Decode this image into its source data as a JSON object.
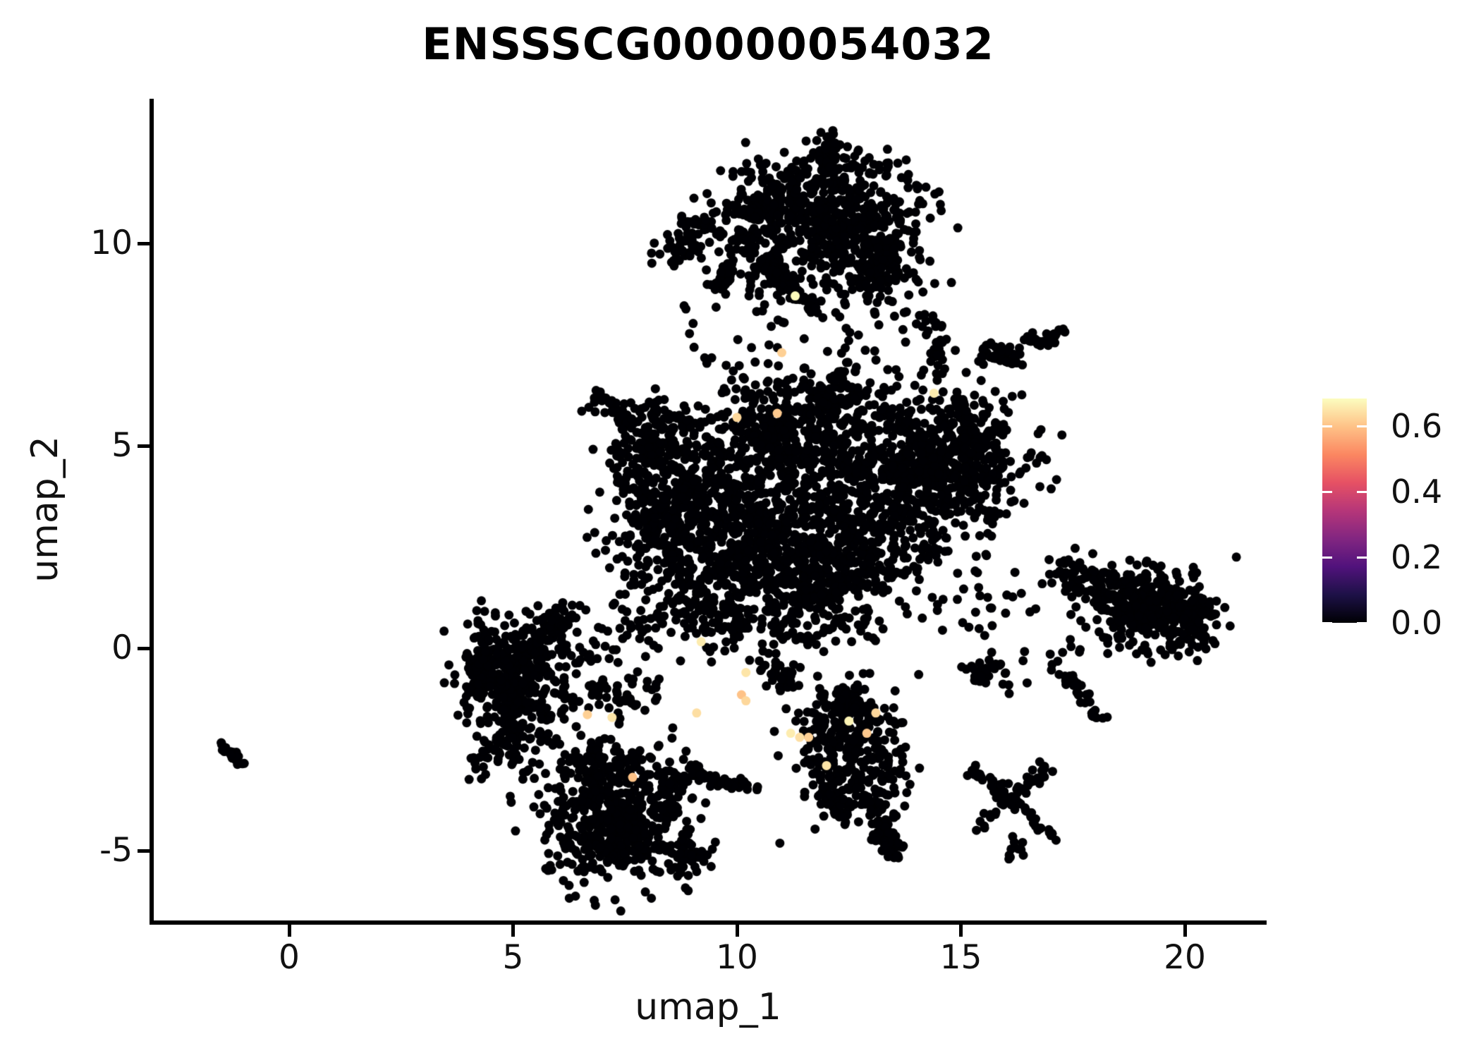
{
  "title": "ENSSSCG00000054032",
  "chart_data": {
    "type": "scatter",
    "title": "ENSSSCG00000054032",
    "xlabel": "umap_1",
    "ylabel": "umap_2",
    "xlim": [
      -3.1,
      21.3
    ],
    "ylim": [
      -6.4,
      13.6
    ],
    "grid": false,
    "point_radius_px": 6.5,
    "zero_color": "#000004",
    "x_ticks": [
      {
        "label": "0",
        "value": 0
      },
      {
        "label": "5",
        "value": 5
      },
      {
        "label": "10",
        "value": 10
      },
      {
        "label": "15",
        "value": 15
      },
      {
        "label": "20",
        "value": 20
      }
    ],
    "y_ticks": [
      {
        "label": "10",
        "value": 10
      },
      {
        "label": "5",
        "value": 5
      },
      {
        "label": "0",
        "value": 0
      },
      {
        "label": "-5",
        "value": -5
      }
    ],
    "colorbar": {
      "position": "right",
      "min": 0,
      "max": 0.685,
      "ticks": [
        {
          "label": "0.6",
          "value": 0.6
        },
        {
          "label": "0.4",
          "value": 0.4
        },
        {
          "label": "0.2",
          "value": 0.2
        },
        {
          "label": "0.0",
          "value": 0.0
        }
      ],
      "colormap": "magma",
      "stops": [
        [
          0.0,
          "#000004"
        ],
        [
          0.125,
          "#1d1147"
        ],
        [
          0.25,
          "#51127c"
        ],
        [
          0.375,
          "#822681"
        ],
        [
          0.5,
          "#b63679"
        ],
        [
          0.625,
          "#e65164"
        ],
        [
          0.75,
          "#fb8761"
        ],
        [
          0.875,
          "#fec287"
        ],
        [
          1.0,
          "#fcfdbf"
        ]
      ]
    },
    "clusters": [
      {
        "name": "top-main-a",
        "type": "gauss",
        "cx": 11.3,
        "cy": 11.1,
        "sx": 0.75,
        "sy": 0.5,
        "n": 170
      },
      {
        "name": "top-main-b",
        "type": "gauss",
        "cx": 12.7,
        "cy": 10.65,
        "sx": 0.75,
        "sy": 0.55,
        "n": 190
      },
      {
        "name": "top-main-c",
        "type": "gauss",
        "cx": 11.8,
        "cy": 9.9,
        "sx": 0.8,
        "sy": 0.5,
        "n": 160
      },
      {
        "name": "top-main-d",
        "type": "gauss",
        "cx": 13.25,
        "cy": 9.35,
        "sx": 0.5,
        "sy": 0.45,
        "n": 110
      },
      {
        "name": "top-main-e",
        "type": "gauss",
        "cx": 12.2,
        "cy": 11.9,
        "sx": 0.45,
        "sy": 0.3,
        "n": 50
      },
      {
        "name": "top-arm",
        "type": "chain",
        "pts": [
          [
            9.9,
            10.75
          ],
          [
            10.85,
            10.8
          ]
        ],
        "jitter": 0.15,
        "n": 45
      },
      {
        "name": "top-peak",
        "type": "gauss",
        "cx": 12.1,
        "cy": 12.4,
        "sx": 0.12,
        "sy": 0.18,
        "n": 18
      },
      {
        "name": "top-lobe-left",
        "type": "gauss",
        "cx": 10.35,
        "cy": 9.9,
        "sx": 0.3,
        "sy": 0.35,
        "n": 45
      },
      {
        "name": "top-fill",
        "type": "uniform",
        "x0": 10.2,
        "x1": 14.2,
        "y0": 8.6,
        "y1": 12.3,
        "n": 80
      },
      {
        "name": "top-left-clump-a",
        "type": "gauss",
        "cx": 8.85,
        "cy": 10.15,
        "sx": 0.22,
        "sy": 0.25,
        "n": 30
      },
      {
        "name": "top-left-clump-b",
        "type": "gauss",
        "cx": 8.55,
        "cy": 9.85,
        "sx": 0.15,
        "sy": 0.15,
        "n": 12
      },
      {
        "name": "top-left-clump-c",
        "type": "gauss",
        "cx": 9.3,
        "cy": 10.55,
        "sx": 0.12,
        "sy": 0.12,
        "n": 10
      },
      {
        "name": "top-left-chain",
        "type": "chain",
        "pts": [
          [
            9.55,
            8.75
          ],
          [
            9.85,
            9.45
          ]
        ],
        "jitter": 0.12,
        "n": 35
      },
      {
        "name": "top-hook",
        "type": "chain",
        "pts": [
          [
            10.75,
            9.35
          ],
          [
            11.1,
            8.9
          ]
        ],
        "jitter": 0.1,
        "n": 30
      },
      {
        "name": "top-diag-streak",
        "type": "chain",
        "pts": [
          [
            10.95,
            9.3
          ],
          [
            11.9,
            8.15
          ]
        ],
        "jitter": 0.08,
        "n": 40
      },
      {
        "name": "upper-sparse",
        "type": "uniform",
        "x0": 8.8,
        "x1": 14.6,
        "y0": 6.6,
        "y1": 8.6,
        "n": 55
      },
      {
        "name": "upper-left-sparse",
        "type": "uniform",
        "x0": 7.8,
        "x1": 9.6,
        "y0": 9.3,
        "y1": 11.2,
        "n": 16
      },
      {
        "name": "right-top-chain",
        "type": "chain",
        "pts": [
          [
            15.45,
            7.35
          ],
          [
            16.25,
            7.1
          ]
        ],
        "jitter": 0.15,
        "n": 40
      },
      {
        "name": "right-top-clump",
        "type": "gauss",
        "cx": 16.6,
        "cy": 7.65,
        "sx": 0.15,
        "sy": 0.12,
        "n": 14
      },
      {
        "name": "right-top-dash",
        "type": "chain",
        "pts": [
          [
            16.85,
            7.5
          ],
          [
            17.3,
            7.9
          ]
        ],
        "jitter": 0.06,
        "n": 22
      },
      {
        "name": "top-bridge",
        "type": "chain",
        "pts": [
          [
            14.35,
            8.2
          ],
          [
            14.55,
            7.05
          ]
        ],
        "jitter": 0.12,
        "n": 30
      },
      {
        "name": "center-left",
        "type": "gauss",
        "cx": 8.5,
        "cy": 3.4,
        "sx": 0.75,
        "sy": 1.05,
        "n": 330
      },
      {
        "name": "center-left-top",
        "type": "gauss",
        "cx": 8.15,
        "cy": 5.05,
        "sx": 0.5,
        "sy": 0.55,
        "n": 110
      },
      {
        "name": "center-mid",
        "type": "gauss",
        "cx": 10.2,
        "cy": 3.1,
        "sx": 0.95,
        "sy": 1.15,
        "n": 420
      },
      {
        "name": "center-mid-top",
        "type": "gauss",
        "cx": 10.9,
        "cy": 5.3,
        "sx": 0.95,
        "sy": 0.75,
        "n": 280
      },
      {
        "name": "center-low",
        "type": "gauss",
        "cx": 11.6,
        "cy": 1.75,
        "sx": 0.85,
        "sy": 0.85,
        "n": 380
      },
      {
        "name": "center-right-dense",
        "type": "gauss",
        "cx": 14.0,
        "cy": 4.55,
        "sx": 1.1,
        "sy": 0.85,
        "n": 600
      },
      {
        "name": "center-right-low",
        "type": "gauss",
        "cx": 13.1,
        "cy": 2.9,
        "sx": 0.85,
        "sy": 0.75,
        "n": 240
      },
      {
        "name": "center-right-edge",
        "type": "gauss",
        "cx": 15.35,
        "cy": 4.9,
        "sx": 0.45,
        "sy": 0.6,
        "n": 110
      },
      {
        "name": "center-bottom-left",
        "type": "gauss",
        "cx": 9.3,
        "cy": 1.1,
        "sx": 0.6,
        "sy": 0.6,
        "n": 120
      },
      {
        "name": "center-fill",
        "type": "uniform",
        "x0": 7.2,
        "x1": 15.8,
        "y0": 0.3,
        "y1": 6.4,
        "n": 260
      },
      {
        "name": "center-top-edge",
        "type": "gauss",
        "cx": 12.2,
        "cy": 6.3,
        "sx": 0.5,
        "sy": 0.35,
        "n": 60
      },
      {
        "name": "center-top-streak",
        "type": "chain",
        "pts": [
          [
            6.85,
            6.35
          ],
          [
            7.45,
            5.7
          ]
        ],
        "jitter": 0.08,
        "n": 30
      },
      {
        "name": "center-top-trail",
        "type": "uniform",
        "x0": 7.4,
        "x1": 9.0,
        "y0": 5.4,
        "y1": 6.0,
        "n": 22
      },
      {
        "name": "center-gap-sparse",
        "type": "uniform",
        "x0": 11.8,
        "x1": 12.7,
        "y0": 4.3,
        "y1": 7.0,
        "n": 35
      },
      {
        "name": "left-core",
        "type": "gauss",
        "cx": 5.05,
        "cy": -0.75,
        "sx": 0.6,
        "sy": 0.7,
        "n": 330
      },
      {
        "name": "left-tip",
        "type": "gauss",
        "cx": 4.35,
        "cy": -0.35,
        "sx": 0.25,
        "sy": 0.4,
        "n": 60
      },
      {
        "name": "left-arm",
        "type": "chain",
        "pts": [
          [
            5.6,
            0.3
          ],
          [
            6.35,
            0.95
          ]
        ],
        "jitter": 0.15,
        "n": 50
      },
      {
        "name": "left-tail",
        "type": "gauss",
        "cx": 5.0,
        "cy": -2.1,
        "sx": 0.3,
        "sy": 0.25,
        "n": 45
      },
      {
        "name": "left-below-sparse",
        "type": "uniform",
        "x0": 3.9,
        "x1": 5.6,
        "y0": -3.3,
        "y1": -2.4,
        "n": 30
      },
      {
        "name": "left-bridge-sparse",
        "type": "uniform",
        "x0": 6.0,
        "x1": 8.3,
        "y0": -2.0,
        "y1": 0.6,
        "n": 70
      },
      {
        "name": "left-bridge-clump-a",
        "type": "gauss",
        "cx": 6.9,
        "cy": -1.0,
        "sx": 0.15,
        "sy": 0.12,
        "n": 12
      },
      {
        "name": "left-bridge-clump-b",
        "type": "gauss",
        "cx": 7.5,
        "cy": -1.3,
        "sx": 0.12,
        "sy": 0.12,
        "n": 10
      },
      {
        "name": "bottomleft-core",
        "type": "gauss",
        "cx": 7.3,
        "cy": -4.35,
        "sx": 0.75,
        "sy": 0.7,
        "n": 380
      },
      {
        "name": "bottomleft-top",
        "type": "gauss",
        "cx": 7.0,
        "cy": -2.95,
        "sx": 0.8,
        "sy": 0.45,
        "n": 130
      },
      {
        "name": "bottomleft-peninsula",
        "type": "gauss",
        "cx": 8.95,
        "cy": -5.2,
        "sx": 0.25,
        "sy": 0.3,
        "n": 40
      },
      {
        "name": "bottomleft-chain",
        "type": "chain",
        "pts": [
          [
            8.2,
            -3.6
          ],
          [
            8.9,
            -3.2
          ]
        ],
        "jitter": 0.1,
        "n": 25
      },
      {
        "name": "bottomleft-fill",
        "type": "uniform",
        "x0": 6.2,
        "x1": 8.6,
        "y0": -5.8,
        "y1": -2.5,
        "n": 80
      },
      {
        "name": "smile-arc",
        "type": "chain",
        "pts": [
          [
            9.0,
            -3.0
          ],
          [
            9.65,
            -3.35
          ],
          [
            10.5,
            -3.4
          ]
        ],
        "jitter": 0.06,
        "n": 55
      },
      {
        "name": "bottommid-core",
        "type": "gauss",
        "cx": 12.55,
        "cy": -2.55,
        "sx": 0.65,
        "sy": 0.8,
        "n": 240
      },
      {
        "name": "bottommid-top",
        "type": "chain",
        "pts": [
          [
            12.2,
            -1.2
          ],
          [
            12.85,
            -1.7
          ]
        ],
        "jitter": 0.2,
        "n": 60
      },
      {
        "name": "bottommid-chain-down",
        "type": "chain",
        "pts": [
          [
            12.9,
            -3.6
          ],
          [
            13.35,
            -4.75
          ]
        ],
        "jitter": 0.12,
        "n": 45
      },
      {
        "name": "bottommid-node",
        "type": "gauss",
        "cx": 13.4,
        "cy": -4.85,
        "sx": 0.18,
        "sy": 0.15,
        "n": 25
      },
      {
        "name": "bottommid-chain2",
        "type": "chain",
        "pts": [
          [
            11.9,
            -3.4
          ],
          [
            12.45,
            -4.3
          ]
        ],
        "jitter": 0.1,
        "n": 30
      },
      {
        "name": "bottommid-fill",
        "type": "uniform",
        "x0": 11.3,
        "x1": 13.8,
        "y0": -4.6,
        "y1": -0.9,
        "n": 60
      },
      {
        "name": "bottommid-link",
        "type": "chain",
        "pts": [
          [
            10.6,
            -0.3
          ],
          [
            11.4,
            -1.0
          ]
        ],
        "jitter": 0.15,
        "n": 35
      },
      {
        "name": "right-core",
        "type": "gauss",
        "cx": 19.45,
        "cy": 0.9,
        "sx": 0.6,
        "sy": 0.45,
        "n": 260
      },
      {
        "name": "right-coast",
        "type": "chain",
        "pts": [
          [
            17.3,
            1.9
          ],
          [
            18.3,
            1.4
          ],
          [
            19.0,
            1.15
          ]
        ],
        "jitter": 0.25,
        "n": 130
      },
      {
        "name": "right-trail",
        "type": "chain",
        "pts": [
          [
            17.0,
            -0.3
          ],
          [
            17.7,
            -1.2
          ],
          [
            18.25,
            -2.05
          ]
        ],
        "jitter": 0.1,
        "n": 35
      },
      {
        "name": "right-clump",
        "type": "gauss",
        "cx": 15.55,
        "cy": -0.55,
        "sx": 0.22,
        "sy": 0.18,
        "n": 25
      },
      {
        "name": "right-east",
        "type": "gauss",
        "cx": 20.2,
        "cy": 0.6,
        "sx": 0.25,
        "sy": 0.35,
        "n": 40
      },
      {
        "name": "right-fill",
        "type": "uniform",
        "x0": 17.2,
        "x1": 20.4,
        "y0": -0.2,
        "y1": 2.2,
        "n": 80
      },
      {
        "name": "right-west-sparse",
        "type": "uniform",
        "x0": 14.9,
        "x1": 16.8,
        "y0": -1.2,
        "y1": 2.0,
        "n": 25
      },
      {
        "name": "arcs-x1",
        "type": "chain",
        "pts": [
          [
            15.15,
            -2.9
          ],
          [
            15.9,
            -3.6
          ],
          [
            16.5,
            -4.1
          ],
          [
            17.05,
            -4.65
          ]
        ],
        "jitter": 0.1,
        "n": 55
      },
      {
        "name": "arcs-x2",
        "type": "chain",
        "pts": [
          [
            15.35,
            -4.55
          ],
          [
            16.1,
            -3.7
          ],
          [
            16.95,
            -2.95
          ]
        ],
        "jitter": 0.1,
        "n": 45
      },
      {
        "name": "arcs-tail",
        "type": "gauss",
        "cx": 16.2,
        "cy": -5.0,
        "sx": 0.15,
        "sy": 0.15,
        "n": 10
      },
      {
        "name": "farleft-streak",
        "type": "chain",
        "pts": [
          [
            -1.55,
            -2.4
          ],
          [
            -1.02,
            -2.85
          ]
        ],
        "jitter": 0.05,
        "n": 22
      }
    ],
    "highlight_points": [
      [
        6.66,
        -1.64,
        0.62
      ],
      [
        7.21,
        -1.71,
        0.65
      ],
      [
        7.67,
        -3.19,
        0.6
      ],
      [
        9.1,
        -1.6,
        0.64
      ],
      [
        9.2,
        0.16,
        0.66
      ],
      [
        10.0,
        5.7,
        0.63
      ],
      [
        10.9,
        5.8,
        0.61
      ],
      [
        14.4,
        6.3,
        0.66
      ],
      [
        11.3,
        8.7,
        0.68
      ],
      [
        11.0,
        7.3,
        0.62
      ],
      [
        10.2,
        -0.6,
        0.65
      ],
      [
        10.1,
        -1.15,
        0.6
      ],
      [
        10.2,
        -1.3,
        0.63
      ],
      [
        11.2,
        -2.1,
        0.66
      ],
      [
        11.4,
        -2.2,
        0.64
      ],
      [
        11.6,
        -2.2,
        0.62
      ],
      [
        12.5,
        -1.8,
        0.67
      ],
      [
        13.1,
        -1.6,
        0.63
      ],
      [
        12.9,
        -2.1,
        0.61
      ],
      [
        12.0,
        -2.9,
        0.65
      ]
    ]
  }
}
